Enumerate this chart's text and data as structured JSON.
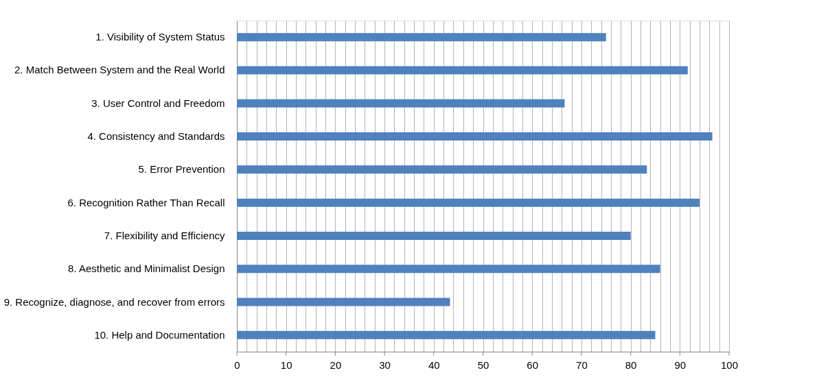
{
  "chart_data": {
    "type": "bar",
    "orientation": "horizontal",
    "categories": [
      "1. Visibility of System Status",
      "2. Match Between System and the Real World",
      "3. User Control and Freedom",
      "4. Consistency and Standards",
      "5. Error Prevention",
      "6. Recognition Rather Than Recall",
      "7. Flexibility and Efficiency",
      "8. Aesthetic and Minimalist Design",
      "9. Recognize, diagnose, and recover from errors",
      "10. Help and Documentation"
    ],
    "values": [
      75,
      91.6,
      66.6,
      96.6,
      83.3,
      94,
      80,
      86,
      43.3,
      85
    ],
    "color": "#4f81bd",
    "xlim": [
      0,
      100
    ],
    "xticks": [
      0,
      {
        "value": 2,
        "label": null
      },
      {
        "value": 4,
        "label": null
      },
      {
        "value": 6,
        "label": null
      },
      {
        "value": 8,
        "label": null
      },
      10,
      {
        "value": 12,
        "label": null
      },
      {
        "value": 14,
        "label": null
      },
      {
        "value": 16,
        "label": null
      },
      {
        "value": 18,
        "label": null
      },
      20,
      {
        "value": 22,
        "label": null
      },
      {
        "value": 24,
        "label": null
      },
      {
        "value": 26,
        "label": null
      },
      {
        "value": 28,
        "label": null
      },
      30,
      {
        "value": 32,
        "label": null
      },
      {
        "value": 34,
        "label": null
      },
      {
        "value": 36,
        "label": null
      },
      {
        "value": 38,
        "label": null
      },
      40,
      {
        "value": 42,
        "label": null
      },
      {
        "value": 44,
        "label": null
      },
      {
        "value": 46,
        "label": null
      },
      {
        "value": 48,
        "label": null
      },
      50,
      {
        "value": 52,
        "label": null
      },
      {
        "value": 54,
        "label": null
      },
      {
        "value": 56,
        "label": null
      },
      {
        "value": 58,
        "label": null
      },
      60,
      {
        "value": 62,
        "label": null
      },
      {
        "value": 64,
        "label": null
      },
      {
        "value": 66,
        "label": null
      },
      {
        "value": 68,
        "label": null
      },
      70,
      {
        "value": 72,
        "label": null
      },
      {
        "value": 74,
        "label": null
      },
      {
        "value": 76,
        "label": null
      },
      {
        "value": 78,
        "label": null
      },
      80,
      {
        "value": 82,
        "label": null
      },
      {
        "value": 84,
        "label": null
      },
      {
        "value": 86,
        "label": null
      },
      {
        "value": 88,
        "label": null
      },
      90,
      {
        "value": 92,
        "label": null
      },
      {
        "value": 94,
        "label": null
      },
      {
        "value": 96,
        "label": null
      },
      {
        "value": 98,
        "label": null
      },
      100
    ],
    "grid": "x"
  }
}
